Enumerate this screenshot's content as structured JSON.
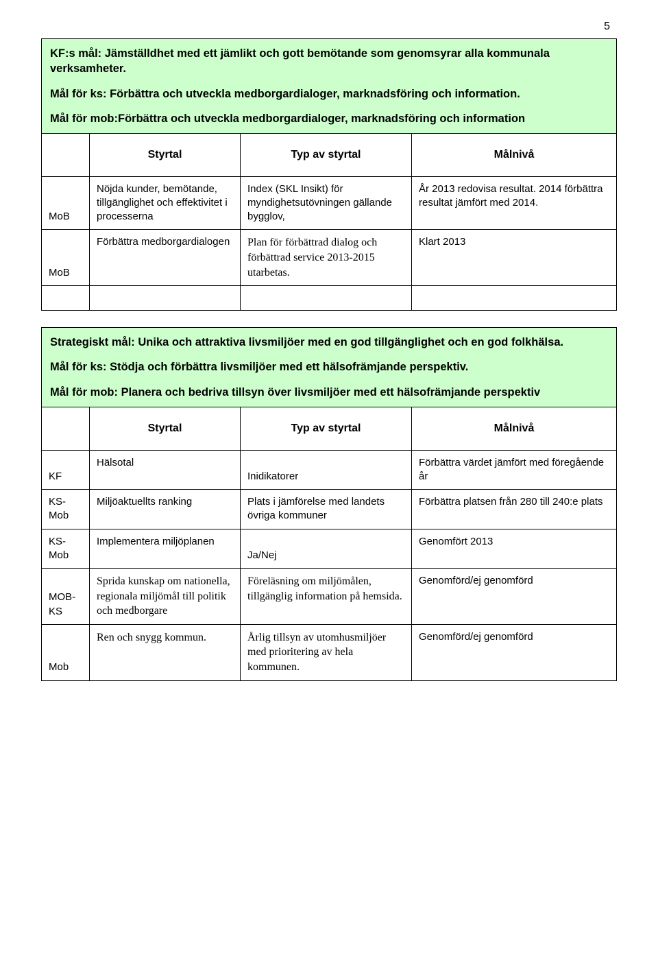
{
  "pageNumber": "5",
  "colors": {
    "headerBg": "#ccffcc",
    "border": "#000000",
    "pageBg": "#ffffff"
  },
  "table1": {
    "header": {
      "line1": "KF:s mål: Jämställdhet med ett jämlikt och gott bemötande som genomsyrar alla kommunala verksamheter.",
      "line2": "Mål för ks: Förbättra och utveckla medborgardialoger, marknadsföring och information.",
      "line3": "Mål för mob:Förbättra och utveckla medborgardialoger, marknadsföring och information"
    },
    "columns": {
      "c1": "Styrtal",
      "c2": "Typ av styrtal",
      "c3": "Målnivå"
    },
    "rows": [
      {
        "left": "MoB",
        "styrtal": "Nöjda kunder, bemötande, tillgänglighet och effektivitet i processerna",
        "typ": "Index (SKL Insikt) för myndighetsutövningen gällande bygglov,",
        "niv": "År 2013 redovisa resultat. 2014 förbättra resultat jämfört med 2014."
      },
      {
        "left": "MoB",
        "styrtal": "Förbättra medborgardialogen",
        "typ": "Plan för förbättrad dialog och förbättrad service 2013-2015 utarbetas.",
        "niv": "Klart 2013"
      }
    ]
  },
  "table2": {
    "header": {
      "line1": "Strategiskt mål: Unika och attraktiva livsmiljöer med en god tillgänglighet och en god folkhälsa.",
      "line2": "Mål för ks: Stödja och förbättra livsmiljöer med ett hälsofrämjande perspektiv.",
      "line3": "Mål för mob: Planera och bedriva tillsyn över livsmiljöer med ett hälsofrämjande perspektiv"
    },
    "columns": {
      "c1": "Styrtal",
      "c2": "Typ av styrtal",
      "c3": "Målnivå"
    },
    "rows": [
      {
        "left": "KF",
        "styrtal": "Hälsotal",
        "typ": "Inidikatorer",
        "niv": "Förbättra värdet jämfört med föregående år"
      },
      {
        "left": "KS-Mob",
        "styrtal": "Miljöaktuellts ranking",
        "typ": "Plats i jämförelse med landets övriga kommuner",
        "niv": "Förbättra platsen från 280 till 240:e plats"
      },
      {
        "left": "KS-Mob",
        "styrtal": "Implementera miljöplanen",
        "typ": "Ja/Nej",
        "niv": "Genomfört 2013"
      },
      {
        "left": "MOB-KS",
        "styrtal": "Sprida kunskap om nationella, regionala miljömål till politik och medborgare",
        "typ": "Föreläsning om miljömålen, tillgänglig information på hemsida.",
        "niv": "Genomförd/ej genomförd"
      },
      {
        "left": "Mob",
        "styrtal": "Ren och snygg kommun.",
        "typ": "Årlig tillsyn av utomhusmiljöer med prioritering av hela kommunen.",
        "niv": "Genomförd/ej genomförd"
      }
    ]
  }
}
